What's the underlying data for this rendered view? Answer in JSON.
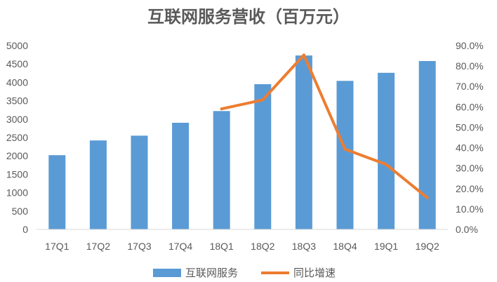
{
  "chart_data": {
    "type": "bar",
    "title": "互联网服务营收（百万元）",
    "categories": [
      "17Q1",
      "17Q2",
      "17Q3",
      "17Q4",
      "18Q1",
      "18Q2",
      "18Q3",
      "18Q4",
      "19Q1",
      "19Q2"
    ],
    "series": [
      {
        "name": "互联网服务",
        "type": "bar",
        "axis": "left",
        "color": "#5B9BD5",
        "values": [
          2020,
          2420,
          2550,
          2900,
          3220,
          3950,
          4730,
          4040,
          4260,
          4580
        ]
      },
      {
        "name": "同比增速",
        "type": "line",
        "axis": "right",
        "color": "#ED7D31",
        "values": [
          null,
          null,
          null,
          null,
          0.59,
          0.634,
          0.854,
          0.393,
          0.318,
          0.155
        ]
      }
    ],
    "left_axis": {
      "ylim": [
        0,
        5000
      ],
      "ticks": [
        "0",
        "500",
        "1000",
        "1500",
        "2000",
        "2500",
        "3000",
        "3500",
        "4000",
        "4500",
        "5000"
      ]
    },
    "right_axis": {
      "ylim": [
        0,
        0.9
      ],
      "ticks": [
        "0.0%",
        "10.0%",
        "20.0%",
        "30.0%",
        "40.0%",
        "50.0%",
        "60.0%",
        "70.0%",
        "80.0%",
        "90.0%"
      ]
    },
    "grid": false,
    "legend": "bottom-center"
  }
}
